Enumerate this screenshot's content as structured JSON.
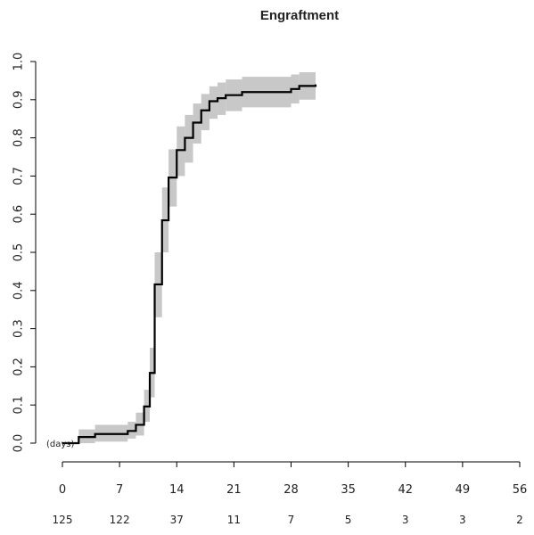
{
  "chart_data": {
    "type": "line",
    "title": "Engraftment",
    "xlabel": "",
    "ylabel": "",
    "x_unit_label": "(days)",
    "xlim": [
      0,
      56
    ],
    "ylim": [
      0,
      1
    ],
    "x_ticks": [
      0,
      7,
      14,
      21,
      28,
      35,
      42,
      49,
      56
    ],
    "y_ticks": [
      "0.0",
      "0.1",
      "0.2",
      "0.3",
      "0.4",
      "0.5",
      "0.6",
      "0.7",
      "0.8",
      "0.9",
      "1.0"
    ],
    "number_at_risk": [
      125,
      122,
      37,
      11,
      7,
      5,
      3,
      3,
      2
    ],
    "grid": false,
    "colors": {
      "line": "#000000",
      "band": "#c8c8c8"
    },
    "series": [
      {
        "step": true,
        "x": [
          0,
          2,
          4,
          8,
          9,
          10,
          10.7,
          11.3,
          12.2,
          13,
          14,
          15,
          16,
          17,
          18,
          19,
          20,
          22,
          28,
          29,
          31
        ],
        "y": [
          0.0,
          0.016,
          0.024,
          0.032,
          0.048,
          0.096,
          0.184,
          0.416,
          0.584,
          0.696,
          0.768,
          0.8,
          0.84,
          0.872,
          0.896,
          0.904,
          0.912,
          0.92,
          0.928,
          0.936,
          0.94
        ],
        "lower": [
          0.0,
          0.0,
          0.004,
          0.012,
          0.02,
          0.056,
          0.12,
          0.33,
          0.5,
          0.62,
          0.7,
          0.735,
          0.785,
          0.82,
          0.85,
          0.86,
          0.87,
          0.88,
          0.89,
          0.9,
          0.9
        ],
        "upper": [
          0.0,
          0.036,
          0.048,
          0.056,
          0.08,
          0.14,
          0.25,
          0.5,
          0.67,
          0.77,
          0.83,
          0.86,
          0.89,
          0.915,
          0.935,
          0.945,
          0.953,
          0.96,
          0.966,
          0.972,
          0.975
        ]
      }
    ]
  }
}
